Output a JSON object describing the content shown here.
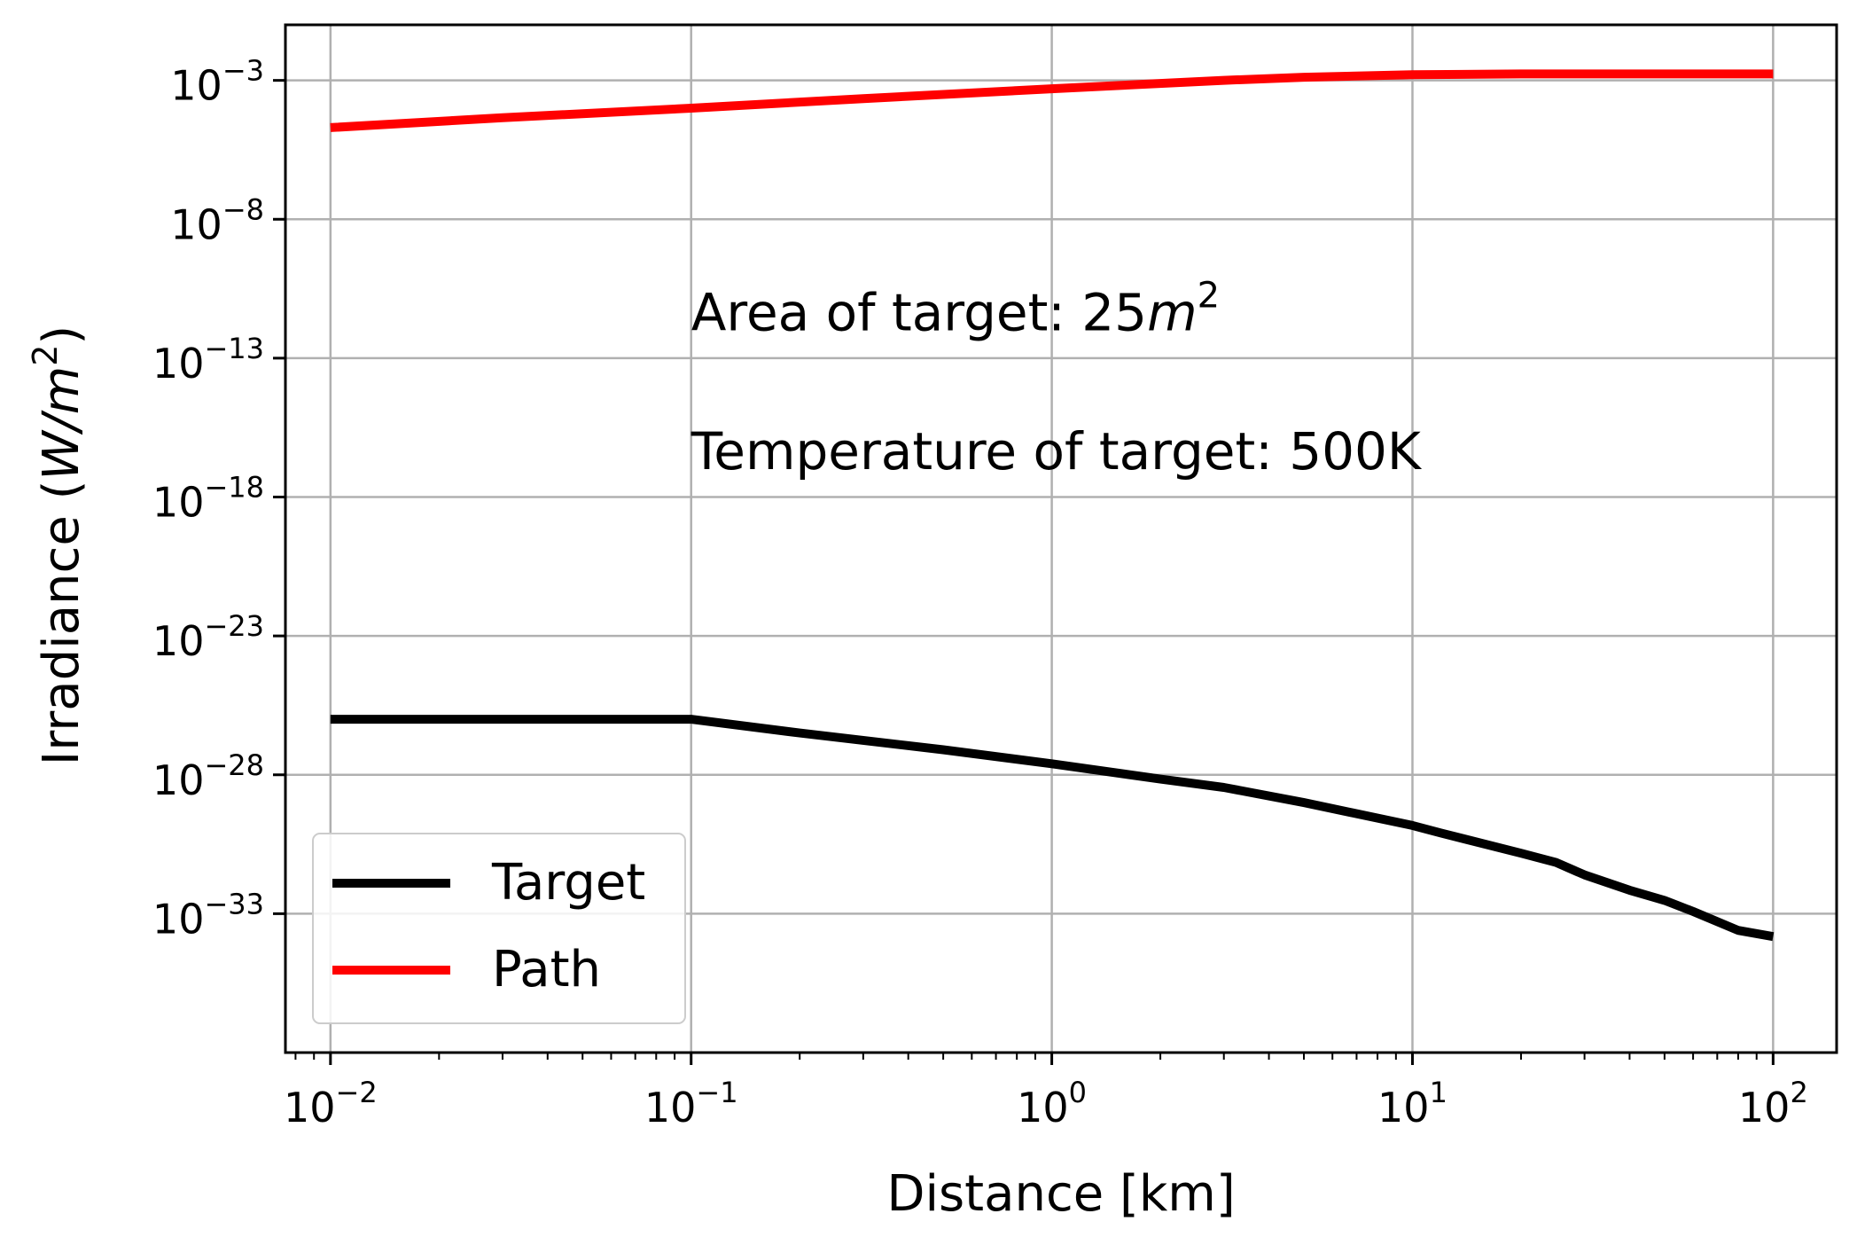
{
  "chart_data": {
    "type": "line",
    "xlabel": "Distance [km]",
    "ylabel_base": "Irradiance (",
    "ylabel_unit_var": "W/m",
    "ylabel_unit_exp": "2",
    "ylabel_close": ")",
    "xscale": "log",
    "yscale": "log",
    "xlim": [
      0.0075,
      150
    ],
    "ylim": [
      1e-38,
      0.1
    ],
    "grid": true,
    "legend_position": "lower-left",
    "x_ticks": [
      {
        "value": 0.01,
        "base": "10",
        "exp": "−2"
      },
      {
        "value": 0.1,
        "base": "10",
        "exp": "−1"
      },
      {
        "value": 1,
        "base": "10",
        "exp": "0"
      },
      {
        "value": 10,
        "base": "10",
        "exp": "1"
      },
      {
        "value": 100,
        "base": "10",
        "exp": "2"
      }
    ],
    "y_ticks": [
      {
        "value": 0.001,
        "base": "10",
        "exp": "−3"
      },
      {
        "value": 1e-08,
        "base": "10",
        "exp": "−8"
      },
      {
        "value": 1e-13,
        "base": "10",
        "exp": "−13"
      },
      {
        "value": 1e-18,
        "base": "10",
        "exp": "−18"
      },
      {
        "value": 1e-23,
        "base": "10",
        "exp": "−23"
      },
      {
        "value": 1e-28,
        "base": "10",
        "exp": "−28"
      },
      {
        "value": 1e-33,
        "base": "10",
        "exp": "−33"
      }
    ],
    "annotations": [
      {
        "text_prefix": "Area of target: 25",
        "text_var": "m",
        "text_exp": "2",
        "x": 0.1,
        "y": 1e-12
      },
      {
        "text_prefix": "Temperature of target: 500K",
        "text_var": "",
        "text_exp": "",
        "x": 0.1,
        "y": 1e-17
      }
    ],
    "series": [
      {
        "name": "Target",
        "color": "#000000",
        "points": [
          [
            0.01,
            1e-26
          ],
          [
            0.1,
            1e-26
          ],
          [
            0.2,
            3.2e-27
          ],
          [
            0.5,
            8e-28
          ],
          [
            1,
            2.5e-28
          ],
          [
            2,
            7e-29
          ],
          [
            3,
            3.5e-29
          ],
          [
            5,
            1e-29
          ],
          [
            10,
            1.5e-30
          ],
          [
            12,
            8e-31
          ],
          [
            20,
            1.5e-31
          ],
          [
            25,
            7e-32
          ],
          [
            30,
            2.5e-32
          ],
          [
            40,
            7e-33
          ],
          [
            50,
            3e-33
          ],
          [
            60,
            1.2e-33
          ],
          [
            80,
            2.5e-34
          ],
          [
            100,
            1.5e-34
          ]
        ]
      },
      {
        "name": "Path",
        "color": "#ff0000",
        "points": [
          [
            0.01,
            2e-05
          ],
          [
            0.03,
            4.5e-05
          ],
          [
            0.1,
            0.0001
          ],
          [
            0.3,
            0.00022
          ],
          [
            1,
            0.0005
          ],
          [
            3,
            0.001
          ],
          [
            5,
            0.0013
          ],
          [
            10,
            0.0016
          ],
          [
            20,
            0.0017
          ],
          [
            50,
            0.0017
          ],
          [
            100,
            0.0017
          ]
        ]
      }
    ]
  }
}
